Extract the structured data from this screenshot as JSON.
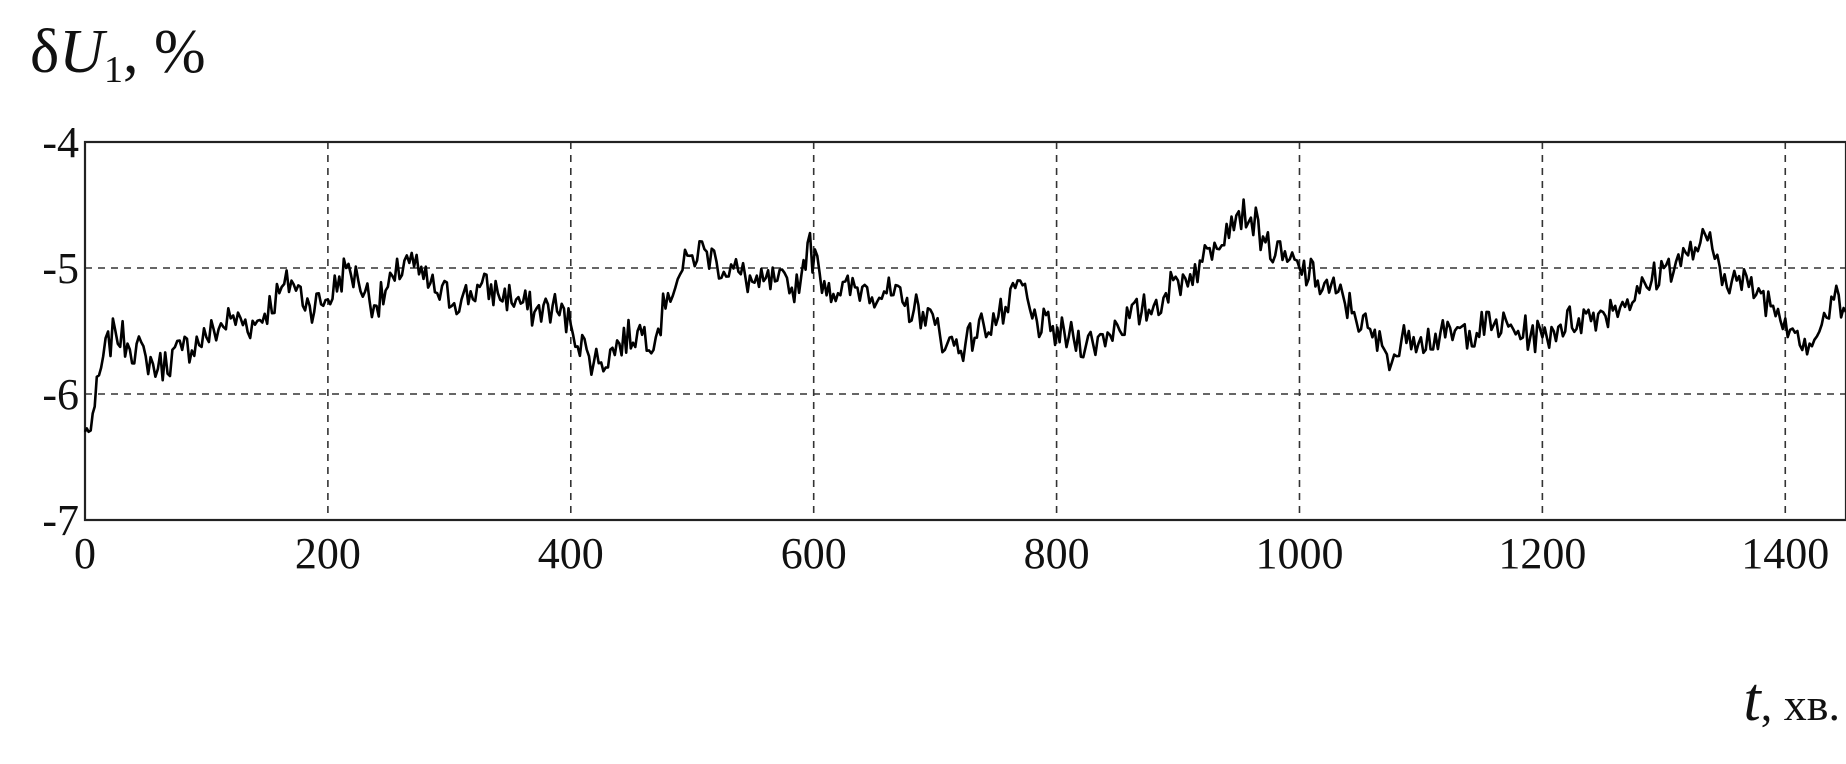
{
  "chart_data": {
    "type": "line",
    "ylabel": {
      "symbol": "δ",
      "var": "U",
      "sub": "1",
      "unit": ",  %"
    },
    "xlabel": {
      "var": "t",
      "unit": ",  хв."
    },
    "xlim": [
      0,
      1450
    ],
    "ylim": [
      -7,
      -4
    ],
    "x_ticks": [
      0,
      200,
      400,
      600,
      800,
      1000,
      1200,
      1400
    ],
    "x_tick_labels": [
      "0",
      "200",
      "400",
      "600",
      "800",
      "1000",
      "1200",
      "1400"
    ],
    "y_ticks": [
      -4,
      -5,
      -6,
      -7
    ],
    "y_tick_labels": [
      "-4",
      "-5",
      "-6",
      "-7"
    ],
    "grid": true,
    "line_color": "#000000",
    "series": [
      {
        "x": [
          0,
          3,
          8,
          15,
          25,
          35,
          50,
          60,
          80,
          100,
          120,
          140,
          160,
          170,
          185,
          200,
          215,
          225,
          240,
          255,
          265,
          275,
          290,
          310,
          325,
          340,
          355,
          370,
          385,
          400,
          415,
          425,
          440,
          455,
          470,
          480,
          490,
          500,
          510,
          520,
          540,
          555,
          570,
          580,
          590,
          595,
          605,
          620,
          640,
          660,
          675,
          690,
          700,
          710,
          725,
          740,
          760,
          770,
          780,
          795,
          810,
          830,
          850,
          870,
          880,
          890,
          900,
          910,
          920,
          930,
          940,
          950,
          960,
          970,
          980,
          990,
          1000,
          1015,
          1030,
          1045,
          1060,
          1070,
          1080,
          1090,
          1100,
          1120,
          1140,
          1160,
          1180,
          1200,
          1215,
          1230,
          1250,
          1260,
          1270,
          1280,
          1290,
          1300,
          1310,
          1320,
          1330,
          1340,
          1350,
          1360,
          1370,
          1380,
          1390,
          1400,
          1410,
          1420,
          1430,
          1440,
          1450
        ],
        "values": [
          -6.3,
          -6.3,
          -6.1,
          -5.7,
          -5.5,
          -5.6,
          -5.7,
          -5.8,
          -5.65,
          -5.55,
          -5.4,
          -5.45,
          -5.2,
          -5.1,
          -5.3,
          -5.25,
          -5.0,
          -5.1,
          -5.3,
          -5.1,
          -4.9,
          -5.05,
          -5.2,
          -5.25,
          -5.15,
          -5.2,
          -5.25,
          -5.35,
          -5.3,
          -5.45,
          -5.7,
          -5.75,
          -5.6,
          -5.5,
          -5.55,
          -5.2,
          -5.05,
          -4.9,
          -4.85,
          -4.95,
          -5.05,
          -5.15,
          -5.1,
          -5.2,
          -5.05,
          -4.8,
          -5.05,
          -5.2,
          -5.15,
          -5.2,
          -5.3,
          -5.35,
          -5.45,
          -5.6,
          -5.6,
          -5.45,
          -5.35,
          -5.1,
          -5.4,
          -5.5,
          -5.55,
          -5.6,
          -5.45,
          -5.35,
          -5.3,
          -5.2,
          -5.1,
          -5.05,
          -4.95,
          -4.8,
          -4.65,
          -4.55,
          -4.6,
          -4.75,
          -4.9,
          -4.95,
          -5.0,
          -5.1,
          -5.2,
          -5.35,
          -5.55,
          -5.65,
          -5.7,
          -5.5,
          -5.55,
          -5.55,
          -5.5,
          -5.45,
          -5.5,
          -5.55,
          -5.45,
          -5.4,
          -5.35,
          -5.3,
          -5.25,
          -5.2,
          -5.1,
          -5.0,
          -4.95,
          -4.9,
          -4.8,
          -4.85,
          -5.05,
          -5.1,
          -5.15,
          -5.2,
          -5.3,
          -5.4,
          -5.5,
          -5.6,
          -5.45,
          -5.25,
          -5.35
        ]
      }
    ]
  }
}
